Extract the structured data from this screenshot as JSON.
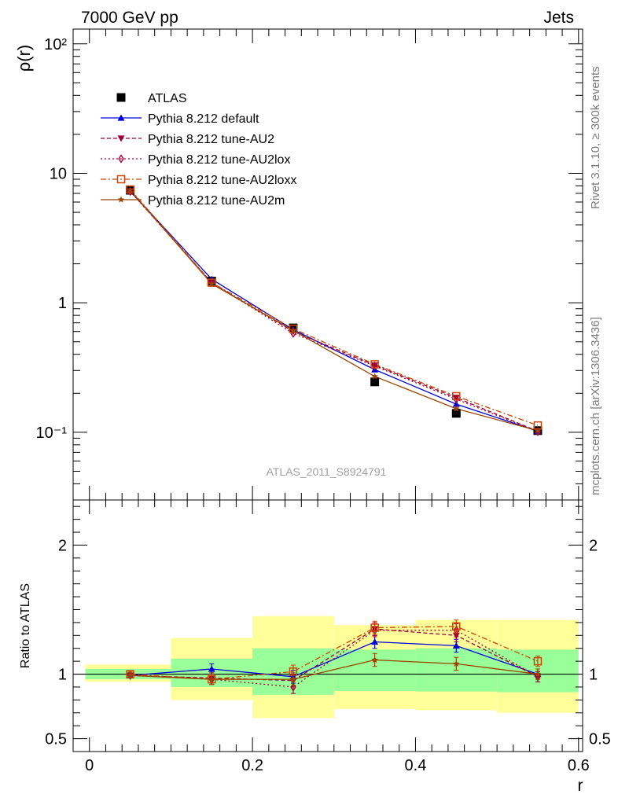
{
  "header": {
    "left": "7000 GeV pp",
    "right": "Jets"
  },
  "side": {
    "rivet": "Rivet 3.1.10, ≥ 300k events",
    "mcplots": "mcplots.cern.ch [arXiv:1306.3436]"
  },
  "watermark": "ATLAS_2011_S8924791",
  "colors": {
    "atlas": "#000000",
    "default": "#0000dd",
    "au2": "#990033",
    "au2lox": "#aa0033",
    "au2loxx": "#cc4400",
    "au2m": "#994400",
    "band_inner": "#99ff99",
    "band_outer": "#ffff99"
  },
  "chart_data": [
    {
      "type": "line",
      "panel": "main",
      "ylabel": "ρ(r)",
      "yscale": "log",
      "ylim": [
        0.03,
        130
      ],
      "xlim": [
        -0.02,
        0.605
      ],
      "ytick_labels": [
        "10⁻¹",
        "1",
        "10",
        "10²"
      ],
      "x": [
        0.05,
        0.15,
        0.25,
        0.35,
        0.45,
        0.55
      ],
      "legend_position": "top-left",
      "series": [
        {
          "name": "ATLAS",
          "key": "atlas",
          "values": [
            7.4,
            1.47,
            0.64,
            0.245,
            0.14,
            0.103
          ]
        },
        {
          "name": "Pythia 8.212 default",
          "key": "default",
          "values": [
            7.3,
            1.52,
            0.62,
            0.305,
            0.165,
            0.102
          ]
        },
        {
          "name": "Pythia 8.212 tune-AU2",
          "key": "au2",
          "values": [
            7.3,
            1.42,
            0.6,
            0.33,
            0.185,
            0.102
          ]
        },
        {
          "name": "Pythia 8.212 tune-AU2lox",
          "key": "au2lox",
          "values": [
            7.25,
            1.43,
            0.58,
            0.325,
            0.18,
            0.101
          ]
        },
        {
          "name": "Pythia 8.212 tune-AU2loxx",
          "key": "au2loxx",
          "values": [
            7.5,
            1.43,
            0.63,
            0.335,
            0.19,
            0.113
          ]
        },
        {
          "name": "Pythia 8.212 tune-AU2m",
          "key": "au2m",
          "values": [
            7.4,
            1.4,
            0.61,
            0.27,
            0.152,
            0.103
          ]
        }
      ]
    },
    {
      "type": "line",
      "panel": "ratio",
      "ylabel": "Ratio to ATLAS",
      "xlabel": "r",
      "ylim": [
        0.4,
        2.35
      ],
      "yticks": [
        0.5,
        1,
        2
      ],
      "ytick_labels": [
        "0.5",
        "1",
        "2"
      ],
      "xticks": [
        0,
        0.2,
        0.4,
        0.6
      ],
      "xtick_labels": [
        "0",
        "0.2",
        "0.4",
        "0.6"
      ],
      "bins": [
        [
          -0.005,
          0.1
        ],
        [
          0.1,
          0.2
        ],
        [
          0.2,
          0.3
        ],
        [
          0.3,
          0.4
        ],
        [
          0.4,
          0.5
        ],
        [
          0.5,
          0.6
        ]
      ],
      "band_inner": [
        [
          0.96,
          1.04
        ],
        [
          0.9,
          1.12
        ],
        [
          0.84,
          1.2
        ],
        [
          0.87,
          1.19
        ],
        [
          0.865,
          1.2
        ],
        [
          0.86,
          1.19
        ]
      ],
      "band_outer": [
        [
          0.94,
          1.075
        ],
        [
          0.8,
          1.28
        ],
        [
          0.66,
          1.45
        ],
        [
          0.73,
          1.38
        ],
        [
          0.72,
          1.42
        ],
        [
          0.7,
          1.42
        ]
      ],
      "x": [
        0.05,
        0.15,
        0.25,
        0.35,
        0.45,
        0.55
      ],
      "series": [
        {
          "name": "Pythia 8.212 default",
          "key": "default",
          "values": [
            0.99,
            1.04,
            0.98,
            1.25,
            1.22,
            1.0
          ],
          "errors": [
            0.02,
            0.04,
            0.05,
            0.05,
            0.05,
            0.04
          ]
        },
        {
          "name": "Pythia 8.212 tune-AU2",
          "key": "au2",
          "values": [
            0.99,
            0.97,
            0.95,
            1.35,
            1.3,
            0.98
          ],
          "errors": [
            0.02,
            0.04,
            0.05,
            0.05,
            0.05,
            0.04
          ]
        },
        {
          "name": "Pythia 8.212 tune-AU2lox",
          "key": "au2lox",
          "values": [
            0.99,
            0.96,
            0.9,
            1.34,
            1.34,
            0.98
          ],
          "errors": [
            0.02,
            0.04,
            0.05,
            0.05,
            0.05,
            0.04
          ]
        },
        {
          "name": "Pythia 8.212 tune-AU2loxx",
          "key": "au2loxx",
          "values": [
            1.0,
            0.96,
            1.02,
            1.36,
            1.37,
            1.1
          ],
          "errors": [
            0.02,
            0.04,
            0.05,
            0.05,
            0.05,
            0.04
          ]
        },
        {
          "name": "Pythia 8.212 tune-AU2m",
          "key": "au2m",
          "values": [
            0.99,
            0.96,
            0.96,
            1.11,
            1.08,
            1.0
          ],
          "errors": [
            0.02,
            0.04,
            0.05,
            0.05,
            0.05,
            0.04
          ]
        }
      ]
    }
  ]
}
